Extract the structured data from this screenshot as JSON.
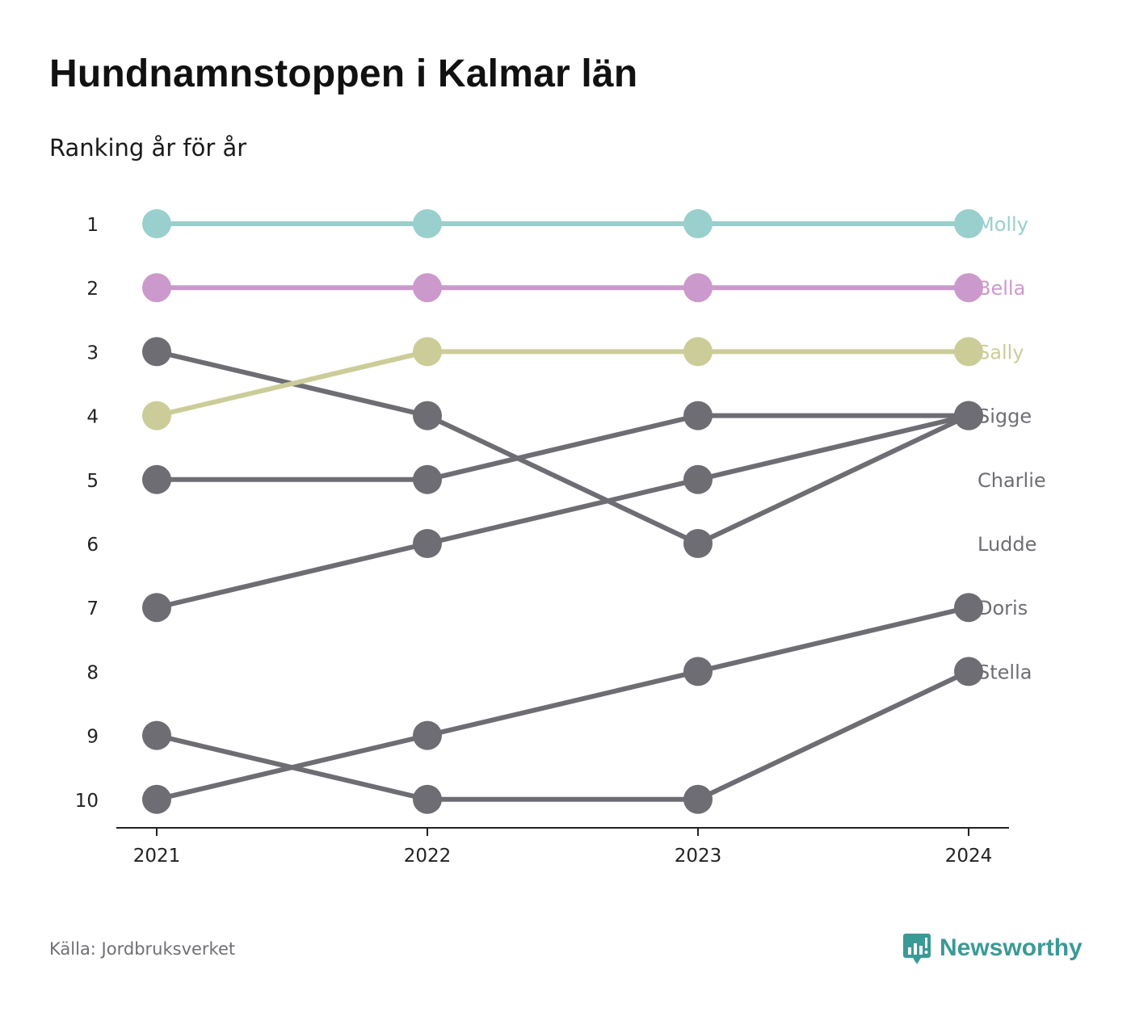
{
  "header": {
    "title": "Hundnamnstoppen i Kalmar län",
    "subtitle": "Ranking år för år"
  },
  "footer": {
    "source": "Källa: Jordbruksverket",
    "brand": "Newsworthy",
    "brand_icon": "newsworthy-chart-bubble-icon"
  },
  "colors": {
    "teal": "#99cfcd",
    "purple": "#cc99cc",
    "olive": "#cccc99",
    "grey": "#6e6d74",
    "axis": "#222222",
    "brand": "#3a9a96"
  },
  "chart_data": {
    "type": "line",
    "title": "Hundnamnstoppen i Kalmar län",
    "subtitle": "Ranking år för år",
    "x": [
      "2021",
      "2022",
      "2023",
      "2024"
    ],
    "y_ticks": [
      1,
      2,
      3,
      4,
      5,
      6,
      7,
      8,
      9,
      10
    ],
    "ylim": [
      1,
      10
    ],
    "y_inverted": true,
    "grid": false,
    "series": [
      {
        "name": "Molly",
        "values": [
          1,
          1,
          1,
          1
        ],
        "color": "#99cfcd"
      },
      {
        "name": "Bella",
        "values": [
          2,
          2,
          2,
          2
        ],
        "color": "#cc99cc"
      },
      {
        "name": "Sally",
        "values": [
          4,
          3,
          3,
          3
        ],
        "color": "#cccc99"
      },
      {
        "name": "Sigge",
        "values": [
          5,
          5,
          4,
          4
        ],
        "color": "#6e6d74"
      },
      {
        "name": "Charlie",
        "values": [
          7,
          6,
          5,
          4
        ],
        "color": "#6e6d74"
      },
      {
        "name": "Ludde",
        "values": [
          3,
          4,
          6,
          4
        ],
        "color": "#6e6d74"
      },
      {
        "name": "Doris",
        "values": [
          10,
          9,
          8,
          7
        ],
        "color": "#6e6d74"
      },
      {
        "name": "Stella",
        "values": [
          9,
          10,
          10,
          8
        ],
        "color": "#6e6d74"
      }
    ],
    "end_labels": [
      "Molly",
      "Bella",
      "Sally",
      "Sigge",
      "Charlie",
      "Ludde",
      "Doris",
      "Stella"
    ]
  }
}
